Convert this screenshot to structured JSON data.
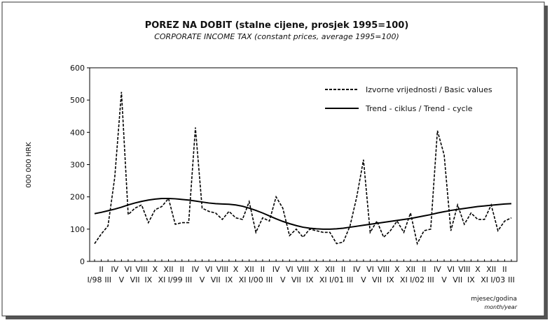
{
  "chart_data": {
    "type": "line",
    "title": "POREZ NA DOBIT (stalne cijene, prosjek 1995=100)",
    "subtitle": "CORPORATE INCOME TAX (constant prices, average 1995=100)",
    "y_label": "000 000 HRK",
    "x_label": "mjesec/godina",
    "x_label_en": "month/year",
    "categories": [
      "I/98",
      "II",
      "III",
      "IV",
      "V",
      "VI",
      "VII",
      "VIII",
      "IX",
      "X",
      "XI",
      "XII",
      "I/99",
      "II",
      "III",
      "IV",
      "V",
      "VI",
      "VII",
      "VIII",
      "IX",
      "X",
      "XI",
      "XII",
      "I/00",
      "II",
      "III",
      "IV",
      "V",
      "VI",
      "VII",
      "VIII",
      "IX",
      "X",
      "XI",
      "XII",
      "I/01",
      "II",
      "III",
      "IV",
      "V",
      "VI",
      "VII",
      "VIII",
      "IX",
      "X",
      "XI",
      "XII",
      "I/02",
      "II",
      "III",
      "IV",
      "V",
      "VI",
      "VII",
      "VIII",
      "IX",
      "X",
      "XI",
      "XII",
      "I/03",
      "II",
      "III"
    ],
    "series": [
      {
        "name": "Izvorne vrijednosti / Basic values",
        "color": "#000000",
        "dash": true,
        "values": [
          55,
          85,
          110,
          260,
          525,
          145,
          165,
          175,
          120,
          160,
          170,
          195,
          115,
          120,
          120,
          415,
          165,
          155,
          150,
          130,
          155,
          135,
          130,
          185,
          90,
          135,
          125,
          200,
          165,
          80,
          100,
          75,
          100,
          95,
          90,
          90,
          55,
          60,
          110,
          200,
          315,
          90,
          125,
          75,
          95,
          125,
          90,
          150,
          55,
          95,
          100,
          405,
          330,
          95,
          175,
          115,
          150,
          130,
          130,
          175,
          95,
          125,
          135
        ]
      },
      {
        "name": "Trend - ciklus / Trend - cycle",
        "color": "#000000",
        "dash": false,
        "values": [
          148,
          152,
          157,
          162,
          168,
          175,
          181,
          186,
          190,
          193,
          195,
          195,
          194,
          192,
          190,
          187,
          184,
          181,
          179,
          178,
          177,
          175,
          171,
          165,
          158,
          150,
          141,
          132,
          124,
          117,
          111,
          106,
          103,
          101,
          100,
          100,
          101,
          103,
          106,
          109,
          112,
          115,
          118,
          121,
          124,
          127,
          130,
          133,
          137,
          141,
          145,
          150,
          154,
          158,
          161,
          164,
          167,
          170,
          172,
          174,
          176,
          178,
          179
        ]
      }
    ],
    "ylim": [
      0,
      600
    ],
    "yticks": [
      0,
      100,
      200,
      300,
      400,
      500,
      600
    ],
    "legend": "top-right"
  }
}
